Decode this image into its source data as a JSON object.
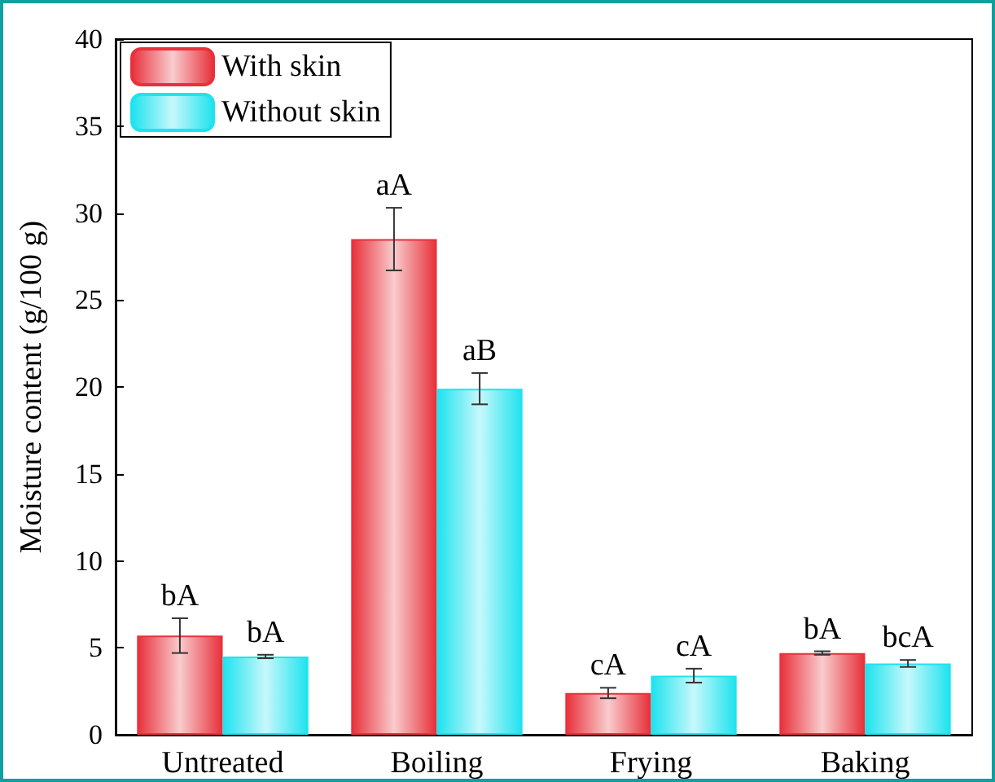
{
  "chart_data": {
    "type": "bar",
    "ylabel": "Moisture content (g/100 g)",
    "categories": [
      "Untreated",
      "Boiling",
      "Frying",
      "Baking"
    ],
    "ylim": [
      0,
      40
    ],
    "yticks": [
      0,
      5,
      10,
      15,
      20,
      25,
      30,
      35,
      40
    ],
    "grid": false,
    "legend": "top left",
    "series": [
      {
        "name": "With skin",
        "color": "#e8313b",
        "values": [
          5.7,
          28.5,
          2.4,
          4.7
        ],
        "errors": [
          1.0,
          1.8,
          0.3,
          0.1
        ],
        "value_labels": [
          "bA",
          "aA",
          "cA",
          "bA"
        ]
      },
      {
        "name": "Without skin",
        "color": "#1fe3ee",
        "values": [
          4.5,
          19.9,
          3.4,
          4.1
        ],
        "errors": [
          0.1,
          0.9,
          0.4,
          0.2
        ],
        "value_labels": [
          "bA",
          "aB",
          "cA",
          "bcA"
        ]
      }
    ]
  }
}
